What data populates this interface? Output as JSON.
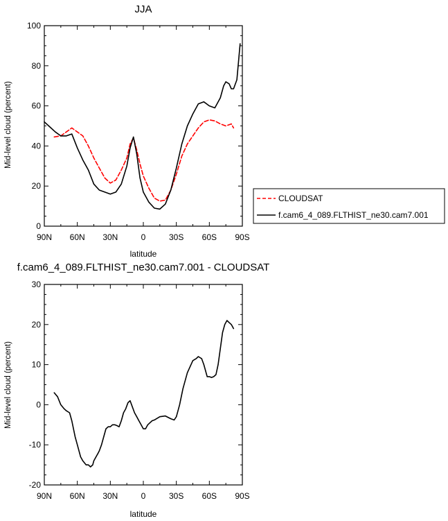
{
  "chart_data": [
    {
      "type": "line",
      "title": "JJA",
      "xlabel": "latitude",
      "ylabel": "Mid-level cloud (percent)",
      "x_ticks": [
        90,
        60,
        30,
        0,
        -30,
        -60,
        -90
      ],
      "x_tick_labels": [
        "90N",
        "60N",
        "30N",
        "0",
        "30S",
        "60S",
        "90S"
      ],
      "xlim": [
        90,
        -90
      ],
      "ylim": [
        0,
        100
      ],
      "y_ticks": [
        0,
        20,
        40,
        60,
        80,
        100
      ],
      "grid": false,
      "legend_position": "right",
      "series": [
        {
          "name": "CLOUDSAT",
          "color": "#ff0000",
          "dash": "dashed",
          "x": [
            81,
            75,
            70,
            65,
            60,
            55,
            50,
            45,
            40,
            35,
            30,
            25,
            20,
            15,
            12,
            9,
            6,
            3,
            0,
            -5,
            -10,
            -15,
            -20,
            -25,
            -30,
            -35,
            -40,
            -45,
            -50,
            -55,
            -60,
            -65,
            -70,
            -75,
            -80,
            -82
          ],
          "y": [
            44.5,
            45,
            47,
            49,
            47,
            45,
            40,
            34,
            29,
            24,
            21.5,
            23,
            28,
            34,
            41,
            44,
            38,
            31,
            25,
            19,
            14,
            12.5,
            13,
            18,
            26,
            35,
            41,
            45,
            49,
            52,
            53,
            52.5,
            51,
            50,
            51,
            49
          ]
        },
        {
          "name": "f.cam6_4_089.FLTHIST_ne30.cam7.001",
          "color": "#000000",
          "dash": "solid",
          "x": [
            90,
            85,
            80,
            75,
            70,
            65,
            60,
            55,
            50,
            45,
            40,
            35,
            30,
            25,
            20,
            15,
            12,
            9,
            6,
            3,
            0,
            -5,
            -10,
            -15,
            -20,
            -25,
            -30,
            -35,
            -40,
            -45,
            -50,
            -55,
            -60,
            -65,
            -70,
            -73,
            -75,
            -78,
            -80,
            -82,
            -85,
            -88
          ],
          "y": [
            52,
            49.5,
            47,
            45,
            45,
            46,
            39,
            33,
            28,
            21,
            18,
            17,
            16,
            17,
            21,
            30,
            39,
            44.5,
            36,
            24,
            17,
            12,
            9,
            8.5,
            11,
            18,
            29,
            41,
            50,
            56,
            61,
            62,
            60,
            59,
            64,
            70,
            72,
            71,
            68.5,
            68.5,
            73,
            91
          ]
        }
      ]
    },
    {
      "type": "line",
      "title": "f.cam6_4_089.FLTHIST_ne30.cam7.001 - CLOUDSAT",
      "xlabel": "latitude",
      "ylabel": "Mid-level cloud (percent)",
      "x_ticks": [
        90,
        60,
        30,
        0,
        -30,
        -60,
        -90
      ],
      "x_tick_labels": [
        "90N",
        "60N",
        "30N",
        "0",
        "30S",
        "60S",
        "90S"
      ],
      "xlim": [
        90,
        -90
      ],
      "ylim": [
        -20,
        30
      ],
      "y_ticks": [
        -20,
        -10,
        0,
        10,
        20,
        30
      ],
      "grid": false,
      "series": [
        {
          "color": "#000000",
          "dash": "solid",
          "x": [
            81,
            78,
            75,
            72,
            70,
            67,
            65,
            62,
            60,
            57,
            55,
            52,
            50,
            48,
            46,
            45,
            43,
            41,
            40,
            38,
            36,
            34,
            32,
            30,
            28,
            26,
            24,
            22,
            20,
            18,
            16,
            14,
            12,
            10,
            8,
            6,
            4,
            2,
            0,
            -2,
            -4,
            -6,
            -8,
            -10,
            -15,
            -20,
            -25,
            -28,
            -30,
            -33,
            -36,
            -40,
            -45,
            -48,
            -50,
            -53,
            -55,
            -58,
            -60,
            -62,
            -64,
            -66,
            -68,
            -70,
            -72,
            -74,
            -76,
            -78,
            -80,
            -82
          ],
          "y": [
            3,
            2,
            0,
            -1,
            -1.5,
            -2,
            -4,
            -8,
            -10,
            -13,
            -14,
            -15,
            -15,
            -15.5,
            -15,
            -14,
            -13,
            -12,
            -11.5,
            -10,
            -8,
            -6,
            -5.5,
            -5.5,
            -5,
            -5,
            -5.2,
            -5.5,
            -4,
            -2,
            -1,
            0.5,
            1,
            -0.5,
            -2,
            -3,
            -4,
            -5,
            -6,
            -6,
            -5,
            -4.5,
            -4,
            -3.8,
            -3,
            -2.8,
            -3.5,
            -3.8,
            -3,
            0,
            4,
            8,
            11,
            11.5,
            12,
            11.5,
            10,
            7,
            7,
            6.8,
            7,
            7.5,
            10,
            14,
            18,
            20,
            21,
            20.5,
            20,
            19
          ]
        }
      ]
    }
  ]
}
